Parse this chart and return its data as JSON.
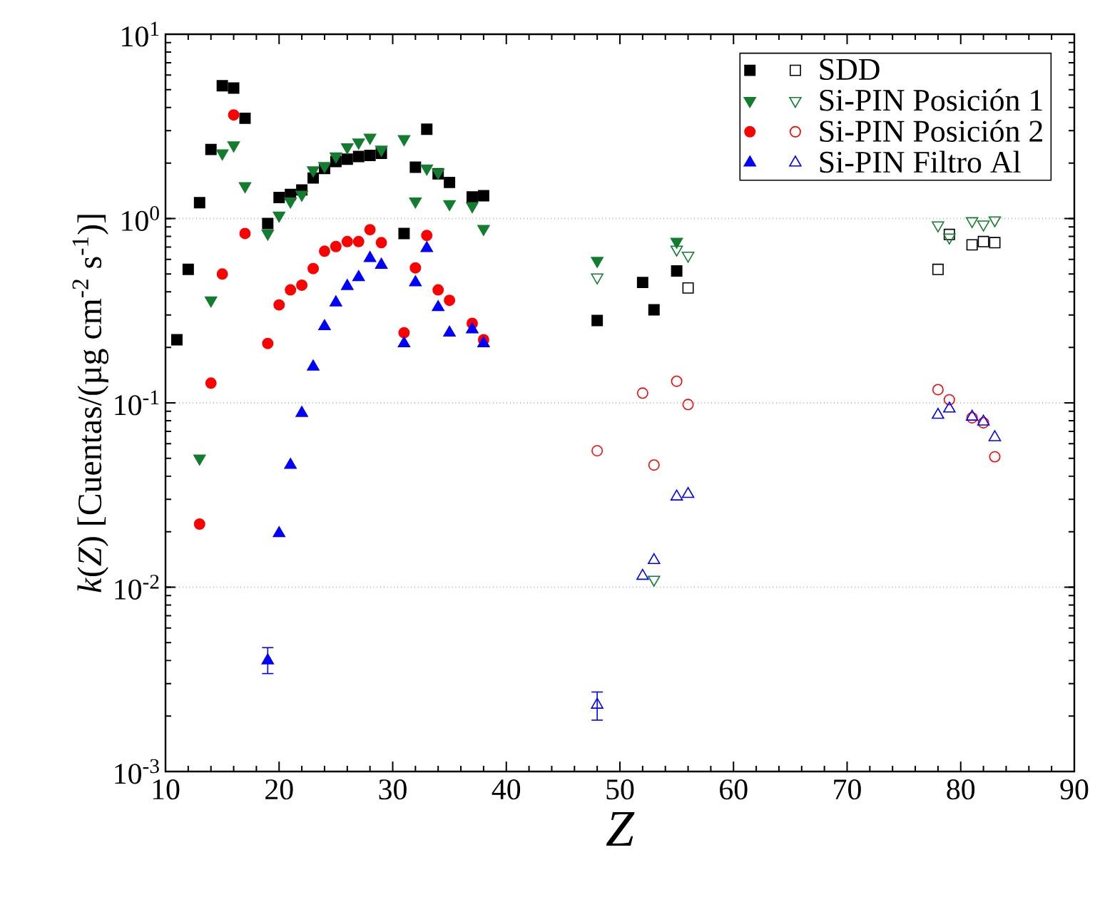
{
  "chart_data": {
    "type": "scatter",
    "xlabel": "Z",
    "ylabel": "*k*(*Z*) [Cuentas/(µg cm$^{-2}$ s$^{-1}$)]",
    "log": "y",
    "grid": "y",
    "legend": "top right",
    "xlim": [
      10,
      90
    ],
    "xticks": [
      10,
      20,
      30,
      40,
      50,
      60,
      70,
      80,
      90
    ],
    "ylim": [
      0.001,
      10
    ],
    "yticks": [
      {
        "value": 0.001,
        "label": "10$^{-3}$"
      },
      {
        "value": 0.01,
        "label": "10$^{-2}$"
      },
      {
        "value": 0.1,
        "label": "10$^{-1}$"
      },
      {
        "value": 1,
        "label": "10$^{0}$"
      },
      {
        "value": 10,
        "label": "10$^{1}$"
      }
    ],
    "series": [
      {
        "name": "SDD",
        "color": "#000000",
        "marker": "square",
        "x": [
          11,
          12,
          13,
          14,
          15,
          16,
          17,
          19,
          20,
          21,
          22,
          23,
          24,
          25,
          26,
          27,
          28,
          29,
          31,
          32,
          33,
          34,
          35,
          37,
          38,
          48,
          52,
          53,
          55
        ],
        "values": [
          0.22,
          0.53,
          1.22,
          2.37,
          5.25,
          5.1,
          3.5,
          0.94,
          1.3,
          1.35,
          1.43,
          1.66,
          1.87,
          2.04,
          2.1,
          2.17,
          2.2,
          2.26,
          0.83,
          1.9,
          3.05,
          1.75,
          1.57,
          1.31,
          1.33,
          0.28,
          0.45,
          0.32,
          0.52
        ]
      },
      {
        "color": "#000000",
        "marker": "square",
        "x": [
          56,
          78,
          79,
          81,
          82,
          83
        ],
        "values": [
          0.42,
          0.53,
          0.82,
          0.72,
          0.75,
          0.74
        ]
      },
      {
        "name": "Si-PIN Posición 1",
        "color": "#137d2f",
        "marker": "triangle-down",
        "x": [
          13,
          14,
          15,
          16,
          17,
          19,
          20,
          21,
          22,
          23,
          24,
          25,
          26,
          27,
          28,
          29,
          31,
          32,
          33,
          34,
          35,
          37,
          38,
          48,
          55
        ],
        "values": [
          0.05,
          0.36,
          2.26,
          2.5,
          1.5,
          0.83,
          1.04,
          1.24,
          1.35,
          1.83,
          1.93,
          2.18,
          2.44,
          2.59,
          2.75,
          2.37,
          2.7,
          1.24,
          1.87,
          1.78,
          1.2,
          1.17,
          0.88,
          0.59,
          0.75
        ]
      },
      {
        "color": "#137d2f",
        "marker": "triangle-down",
        "x": [
          48,
          53,
          55,
          56,
          78,
          79,
          81,
          82,
          83
        ],
        "values": [
          0.48,
          0.011,
          0.68,
          0.63,
          0.92,
          0.79,
          0.97,
          0.93,
          0.98
        ]
      },
      {
        "name": "Si-PIN Posición 2",
        "color": "#ff0000",
        "marker": "circle",
        "x": [
          13,
          14,
          15,
          16,
          17,
          19,
          20,
          21,
          22,
          23,
          24,
          25,
          26,
          27,
          28,
          29,
          31,
          32,
          33,
          34,
          35,
          37,
          38
        ],
        "values": [
          0.022,
          0.128,
          0.5,
          3.65,
          0.83,
          0.21,
          0.34,
          0.41,
          0.435,
          0.535,
          0.665,
          0.705,
          0.75,
          0.75,
          0.87,
          0.74,
          0.24,
          0.54,
          0.81,
          0.41,
          0.36,
          0.27,
          0.22
        ]
      },
      {
        "color": "#ff0000",
        "marker": "circle",
        "x": [
          48,
          52,
          53,
          55,
          56,
          78,
          79,
          81,
          82,
          83
        ],
        "values": [
          0.055,
          0.113,
          0.046,
          0.131,
          0.098,
          0.118,
          0.104,
          0.083,
          0.078,
          0.051
        ]
      },
      {
        "name": "Si-PIN Filtro Al",
        "color": "#0000ff",
        "marker": "triangle",
        "x": [
          19,
          20,
          21,
          22,
          23,
          24,
          25,
          26,
          27,
          28,
          29,
          31,
          32,
          33,
          34,
          35,
          37,
          38
        ],
        "values": [
          0.004,
          0.0196,
          0.046,
          0.088,
          0.157,
          0.26,
          0.35,
          0.43,
          0.48,
          0.61,
          0.56,
          0.21,
          0.45,
          0.69,
          0.33,
          0.24,
          0.25,
          0.21
        ],
        "errors": [
          [
            0.0034,
            0.0047
          ],
          null,
          null,
          null,
          null,
          null,
          null,
          null,
          null,
          null,
          null,
          null,
          null,
          null,
          null,
          null,
          null,
          null
        ]
      },
      {
        "color": "#0000ff",
        "marker": "triangle",
        "x": [
          48,
          52,
          53,
          55,
          56,
          78,
          79,
          81,
          82,
          83
        ],
        "values": [
          0.0023,
          0.0115,
          0.014,
          0.031,
          0.032,
          0.086,
          0.093,
          0.084,
          0.079,
          0.065
        ],
        "errors": [
          [
            0.0019,
            0.0027
          ],
          null,
          null,
          null,
          null,
          null,
          null,
          null,
          null,
          null
        ]
      }
    ]
  }
}
